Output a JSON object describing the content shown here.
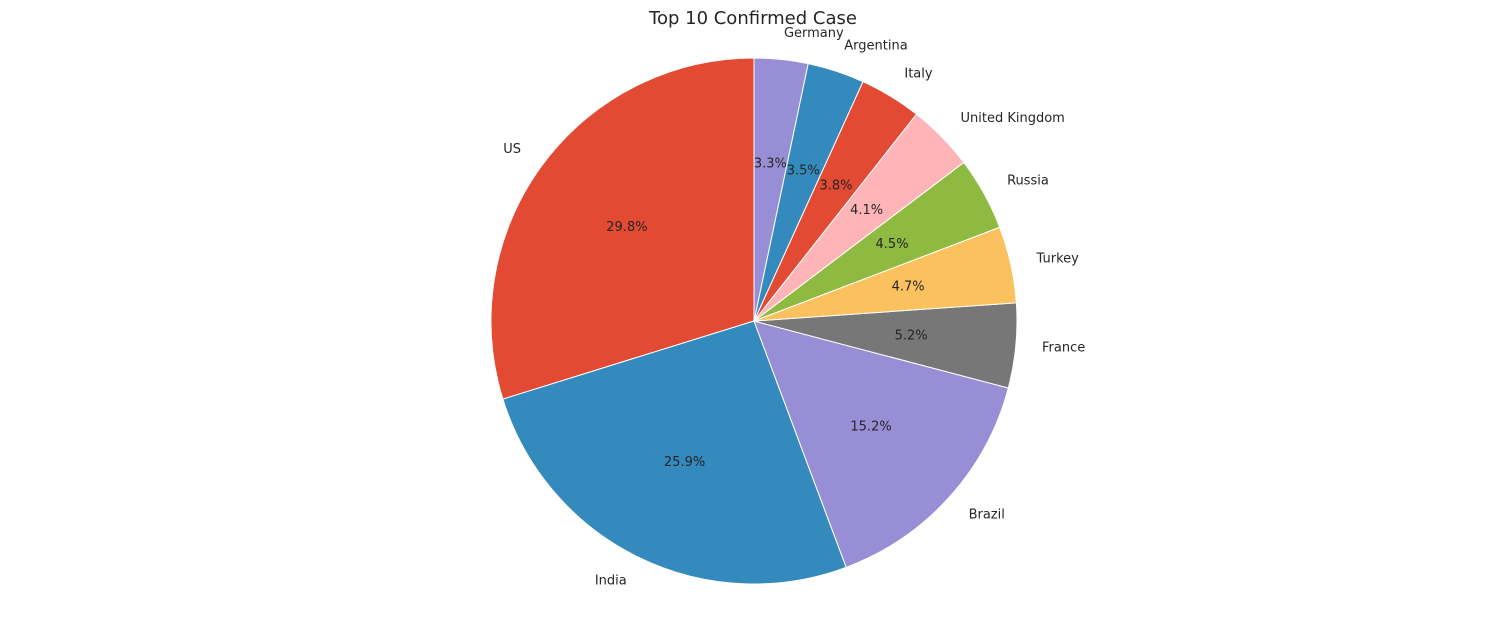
{
  "chart_data": {
    "type": "pie",
    "title": "Top 10 Confirmed Case",
    "start_angle_deg": 90,
    "direction": "counterclockwise",
    "slices": [
      {
        "label": "US",
        "value": 29.8,
        "pct_label": "29.8%",
        "color": "#e24a33"
      },
      {
        "label": "India",
        "value": 25.9,
        "pct_label": "25.9%",
        "color": "#348abd"
      },
      {
        "label": "Brazil",
        "value": 15.2,
        "pct_label": "15.2%",
        "color": "#988ed5"
      },
      {
        "label": "France",
        "value": 5.2,
        "pct_label": "5.2%",
        "color": "#777777"
      },
      {
        "label": "Turkey",
        "value": 4.7,
        "pct_label": "4.7%",
        "color": "#fbc15e"
      },
      {
        "label": "Russia",
        "value": 4.5,
        "pct_label": "4.5%",
        "color": "#8eba42"
      },
      {
        "label": "United Kingdom",
        "value": 4.1,
        "pct_label": "4.1%",
        "color": "#ffb5b8"
      },
      {
        "label": "Italy",
        "value": 3.8,
        "pct_label": "3.8%",
        "color": "#e24a33"
      },
      {
        "label": "Argentina",
        "value": 3.5,
        "pct_label": "3.5%",
        "color": "#348abd"
      },
      {
        "label": "Germany",
        "value": 3.3,
        "pct_label": "3.3%",
        "color": "#988ed5"
      }
    ]
  }
}
